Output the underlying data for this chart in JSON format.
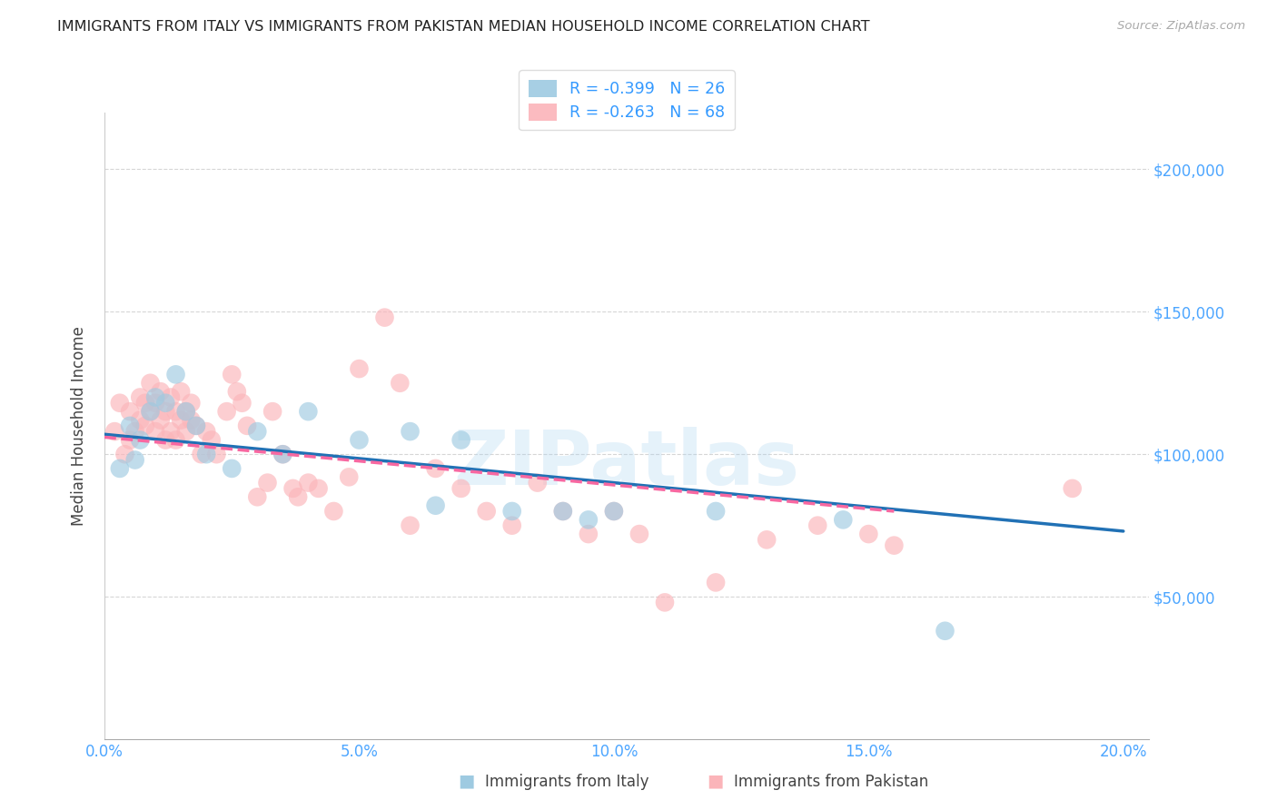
{
  "title": "IMMIGRANTS FROM ITALY VS IMMIGRANTS FROM PAKISTAN MEDIAN HOUSEHOLD INCOME CORRELATION CHART",
  "source": "Source: ZipAtlas.com",
  "ylabel": "Median Household Income",
  "xlim": [
    0.0,
    0.205
  ],
  "ylim": [
    0,
    220000
  ],
  "xtick_labels": [
    "0.0%",
    "",
    "5.0%",
    "",
    "10.0%",
    "",
    "15.0%",
    "",
    "20.0%"
  ],
  "xtick_positions": [
    0.0,
    0.025,
    0.05,
    0.075,
    0.1,
    0.125,
    0.15,
    0.175,
    0.2
  ],
  "ytick_positions": [
    50000,
    100000,
    150000,
    200000
  ],
  "ytick_labels": [
    "$50,000",
    "$100,000",
    "$150,000",
    "$200,000"
  ],
  "watermark": "ZIPatlas",
  "italy_color": "#9ecae1",
  "italy_edge_color": "#6baed6",
  "pakistan_color": "#fbb4b9",
  "pakistan_edge_color": "#f768a1",
  "italy_line_color": "#2171b5",
  "pakistan_line_color": "#f768a1",
  "italy_R": -0.399,
  "italy_N": 26,
  "pakistan_R": -0.263,
  "pakistan_N": 68,
  "italy_scatter_x": [
    0.003,
    0.005,
    0.006,
    0.007,
    0.009,
    0.01,
    0.012,
    0.014,
    0.016,
    0.018,
    0.02,
    0.025,
    0.03,
    0.035,
    0.04,
    0.05,
    0.06,
    0.065,
    0.07,
    0.08,
    0.09,
    0.095,
    0.1,
    0.12,
    0.145,
    0.165
  ],
  "italy_scatter_y": [
    95000,
    110000,
    98000,
    105000,
    115000,
    120000,
    118000,
    128000,
    115000,
    110000,
    100000,
    95000,
    108000,
    100000,
    115000,
    105000,
    108000,
    82000,
    105000,
    80000,
    80000,
    77000,
    80000,
    80000,
    77000,
    38000
  ],
  "pakistan_scatter_x": [
    0.002,
    0.003,
    0.004,
    0.005,
    0.005,
    0.006,
    0.007,
    0.007,
    0.008,
    0.008,
    0.009,
    0.009,
    0.01,
    0.01,
    0.011,
    0.011,
    0.012,
    0.012,
    0.013,
    0.013,
    0.014,
    0.014,
    0.015,
    0.015,
    0.016,
    0.016,
    0.017,
    0.017,
    0.018,
    0.019,
    0.02,
    0.021,
    0.022,
    0.024,
    0.025,
    0.026,
    0.027,
    0.028,
    0.03,
    0.032,
    0.033,
    0.035,
    0.037,
    0.038,
    0.04,
    0.042,
    0.045,
    0.048,
    0.05,
    0.055,
    0.058,
    0.06,
    0.065,
    0.07,
    0.075,
    0.08,
    0.085,
    0.09,
    0.095,
    0.1,
    0.105,
    0.11,
    0.12,
    0.13,
    0.14,
    0.15,
    0.155,
    0.19
  ],
  "pakistan_scatter_y": [
    108000,
    118000,
    100000,
    115000,
    105000,
    108000,
    112000,
    120000,
    118000,
    110000,
    125000,
    115000,
    118000,
    108000,
    122000,
    112000,
    115000,
    105000,
    120000,
    108000,
    115000,
    105000,
    122000,
    112000,
    115000,
    108000,
    118000,
    112000,
    110000,
    100000,
    108000,
    105000,
    100000,
    115000,
    128000,
    122000,
    118000,
    110000,
    85000,
    90000,
    115000,
    100000,
    88000,
    85000,
    90000,
    88000,
    80000,
    92000,
    130000,
    148000,
    125000,
    75000,
    95000,
    88000,
    80000,
    75000,
    90000,
    80000,
    72000,
    80000,
    72000,
    48000,
    55000,
    70000,
    75000,
    72000,
    68000,
    88000
  ],
  "background_color": "#ffffff",
  "grid_color": "#cccccc",
  "title_color": "#333333",
  "axis_label_color": "#444444",
  "tick_color": "#4da6ff",
  "legend_border_color": "#dddddd"
}
